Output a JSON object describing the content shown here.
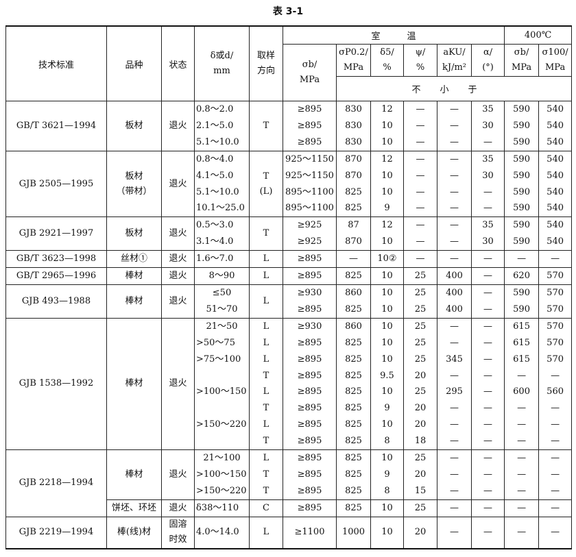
{
  "title": "表 3-1",
  "header": {
    "standard": "技术标准",
    "product": "品种",
    "state": "状态",
    "size": [
      "δ或d/",
      "mm"
    ],
    "direction": [
      "取样",
      "方向"
    ],
    "room_temp": "室　　　温",
    "high_temp": "400℃",
    "sigma_b": [
      "σb/",
      "MPa"
    ],
    "cols_room": [
      [
        "σP0.2/",
        "MPa"
      ],
      [
        "δ5/",
        "%"
      ],
      [
        "ψ/",
        "%"
      ],
      [
        "aKU/",
        "kJ/m²"
      ],
      [
        "α/",
        "(°)"
      ]
    ],
    "cols_high": [
      [
        "σb/",
        "MPa"
      ],
      [
        "σ100/",
        "MPa"
      ]
    ],
    "not_less_than": "不小于"
  },
  "groups": [
    {
      "standard": "GB/T 3621—1994",
      "subgroups": [
        {
          "product": "板材",
          "state": "退火",
          "direction": "T",
          "rows": [
            {
              "dim": "0.8～2.0",
              "vals": [
                "≥895",
                "830",
                "12",
                "—",
                "—",
                "35",
                "590",
                "540"
              ]
            },
            {
              "dim": "2.1～5.0",
              "vals": [
                "≥895",
                "830",
                "10",
                "—",
                "—",
                "30",
                "590",
                "540"
              ]
            },
            {
              "dim": "5.1～10.0",
              "vals": [
                "≥895",
                "830",
                "10",
                "—",
                "—",
                "—",
                "590",
                "540"
              ]
            }
          ]
        }
      ]
    },
    {
      "standard": "GJB 2505—1995",
      "subgroups": [
        {
          "product": "板材\n（带材）",
          "state": "退火",
          "direction": "T\n(L)",
          "rows": [
            {
              "dim": "0.8～4.0",
              "vals": [
                "925～1150",
                "870",
                "12",
                "—",
                "—",
                "35",
                "590",
                "540"
              ]
            },
            {
              "dim": "4.1～5.0",
              "vals": [
                "925～1150",
                "870",
                "10",
                "—",
                "—",
                "30",
                "590",
                "540"
              ]
            },
            {
              "dim": "5.1～10.0",
              "vals": [
                "895～1100",
                "825",
                "10",
                "—",
                "—",
                "—",
                "590",
                "540"
              ]
            },
            {
              "dim": "10.1～25.0",
              "vals": [
                "895～1100",
                "825",
                "9",
                "—",
                "—",
                "—",
                "590",
                "540"
              ]
            }
          ]
        }
      ]
    },
    {
      "standard": "GJB 2921—1997",
      "subgroups": [
        {
          "product": "板材",
          "state": "退火",
          "direction": "T",
          "rows": [
            {
              "dim": "0.5～3.0",
              "vals": [
                "≥925",
                "87",
                "12",
                "—",
                "—",
                "35",
                "590",
                "540"
              ]
            },
            {
              "dim": "3.1～4.0",
              "vals": [
                "≥925",
                "870",
                "10",
                "—",
                "—",
                "30",
                "590",
                "540"
              ]
            }
          ]
        }
      ]
    },
    {
      "standard": "GB/T 3623—1998",
      "subgroups": [
        {
          "product": "丝材①",
          "state": "退火",
          "rows": [
            {
              "dim": "1.6～7.0",
              "dir": "L",
              "vals": [
                "≥895",
                "—",
                "10②",
                "—",
                "—",
                "—",
                "—",
                "—"
              ]
            }
          ]
        }
      ]
    },
    {
      "standard": "GB/T 2965—1996",
      "subgroups": [
        {
          "product": "棒材",
          "state": "退火",
          "rows": [
            {
              "dim": "8～90",
              "dir": "L",
              "vals": [
                "≥895",
                "825",
                "10",
                "25",
                "400",
                "—",
                "620",
                "570"
              ]
            }
          ]
        }
      ]
    },
    {
      "standard": "GJB 493—1988",
      "subgroups": [
        {
          "product": "棒材",
          "state": "退火",
          "direction": "L",
          "rows": [
            {
              "dim": "≤50",
              "vals": [
                "≥930",
                "860",
                "10",
                "25",
                "400",
                "—",
                "590",
                "570"
              ]
            },
            {
              "dim": "51～70",
              "vals": [
                "≥895",
                "825",
                "10",
                "25",
                "400",
                "—",
                "590",
                "570"
              ]
            }
          ]
        }
      ]
    },
    {
      "standard": "GJB 1538—1992",
      "subgroups": [
        {
          "product": "棒材",
          "state": "退火",
          "rows": [
            {
              "dim": "21～50",
              "dir": "L",
              "vals": [
                "≥930",
                "860",
                "10",
                "25",
                "—",
                "—",
                "615",
                "570"
              ]
            },
            {
              "dim": ">50～75",
              "dir": "L",
              "vals": [
                "≥895",
                "825",
                "10",
                "25",
                "—",
                "—",
                "615",
                "570"
              ]
            },
            {
              "dim": ">75～100",
              "dir": "L",
              "vals": [
                "≥895",
                "825",
                "10",
                "25",
                "345",
                "—",
                "615",
                "570"
              ]
            },
            {
              "dir": "T",
              "vals": [
                "≥895",
                "825",
                "9.5",
                "20",
                "—",
                "—",
                "—",
                "—"
              ]
            },
            {
              "dim": ">100～150",
              "dir": "L",
              "vals": [
                "≥895",
                "825",
                "10",
                "25",
                "295",
                "—",
                "600",
                "560"
              ]
            },
            {
              "dir": "T",
              "vals": [
                "≥895",
                "825",
                "9",
                "20",
                "—",
                "—",
                "—",
                "—"
              ]
            },
            {
              "dim": ">150～220",
              "dir": "L",
              "vals": [
                "≥895",
                "825",
                "10",
                "20",
                "—",
                "—",
                "—",
                "—"
              ]
            },
            {
              "dir": "T",
              "vals": [
                "≥895",
                "825",
                "8",
                "18",
                "—",
                "—",
                "—",
                "—"
              ]
            }
          ]
        }
      ]
    },
    {
      "standard": "GJB 2218—1994",
      "subgroups": [
        {
          "product": "棒材",
          "state": "退火",
          "rows": [
            {
              "dim": "21～100",
              "dir": "L",
              "vals": [
                "≥895",
                "825",
                "10",
                "25",
                "—",
                "—",
                "—",
                "—"
              ]
            },
            {
              "dim": ">100～150",
              "dir": "T",
              "vals": [
                "≥895",
                "825",
                "9",
                "20",
                "—",
                "—",
                "—",
                "—"
              ]
            },
            {
              "dim": ">150～220",
              "dir": "T",
              "vals": [
                "≥895",
                "825",
                "8",
                "15",
                "—",
                "—",
                "—",
                "—"
              ]
            }
          ]
        },
        {
          "product": "饼坯、环坯",
          "state": "退火",
          "rows": [
            {
              "dim": "δ38～110",
              "dir": "C",
              "vals": [
                "≥895",
                "825",
                "10",
                "25",
                "—",
                "—",
                "—",
                "—"
              ]
            }
          ]
        }
      ]
    },
    {
      "standard": "GJB 2219—1994",
      "subgroups": [
        {
          "product": "棒(线)材",
          "state": "固溶\n时效",
          "rows": [
            {
              "dim": "4.0～14.0",
              "dir": "L",
              "vals": [
                "≥1100",
                "1000",
                "10",
                "20",
                "—",
                "—",
                "—",
                "—"
              ]
            }
          ]
        }
      ]
    }
  ]
}
